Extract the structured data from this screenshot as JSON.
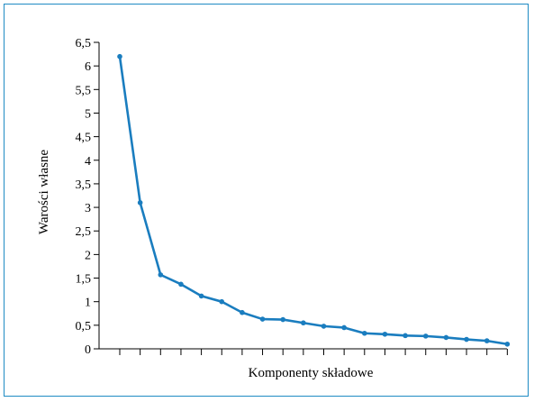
{
  "chart_data": {
    "type": "line",
    "title": "",
    "xlabel": "Komponenty składowe",
    "ylabel": "Warości własne",
    "ylim": [
      0,
      6.5
    ],
    "yticks": [
      "0",
      "0,5",
      "1",
      "1,5",
      "2",
      "2,5",
      "3",
      "3,5",
      "4",
      "4,5",
      "5",
      "5,5",
      "6",
      "6,5"
    ],
    "x": [
      1,
      2,
      3,
      4,
      5,
      6,
      7,
      8,
      9,
      10,
      11,
      12,
      13,
      14,
      15,
      16,
      17,
      18,
      19,
      20
    ],
    "series": [
      {
        "values": [
          6.2,
          3.1,
          1.57,
          1.37,
          1.12,
          1.0,
          0.77,
          0.63,
          0.62,
          0.55,
          0.48,
          0.45,
          0.33,
          0.31,
          0.28,
          0.27,
          0.24,
          0.2,
          0.17,
          0.1
        ],
        "color": "#1a7dbf"
      }
    ],
    "grid": false,
    "legend": "none"
  },
  "colors": {
    "frame": "#1e8bc3",
    "line": "#1a7dbf"
  }
}
